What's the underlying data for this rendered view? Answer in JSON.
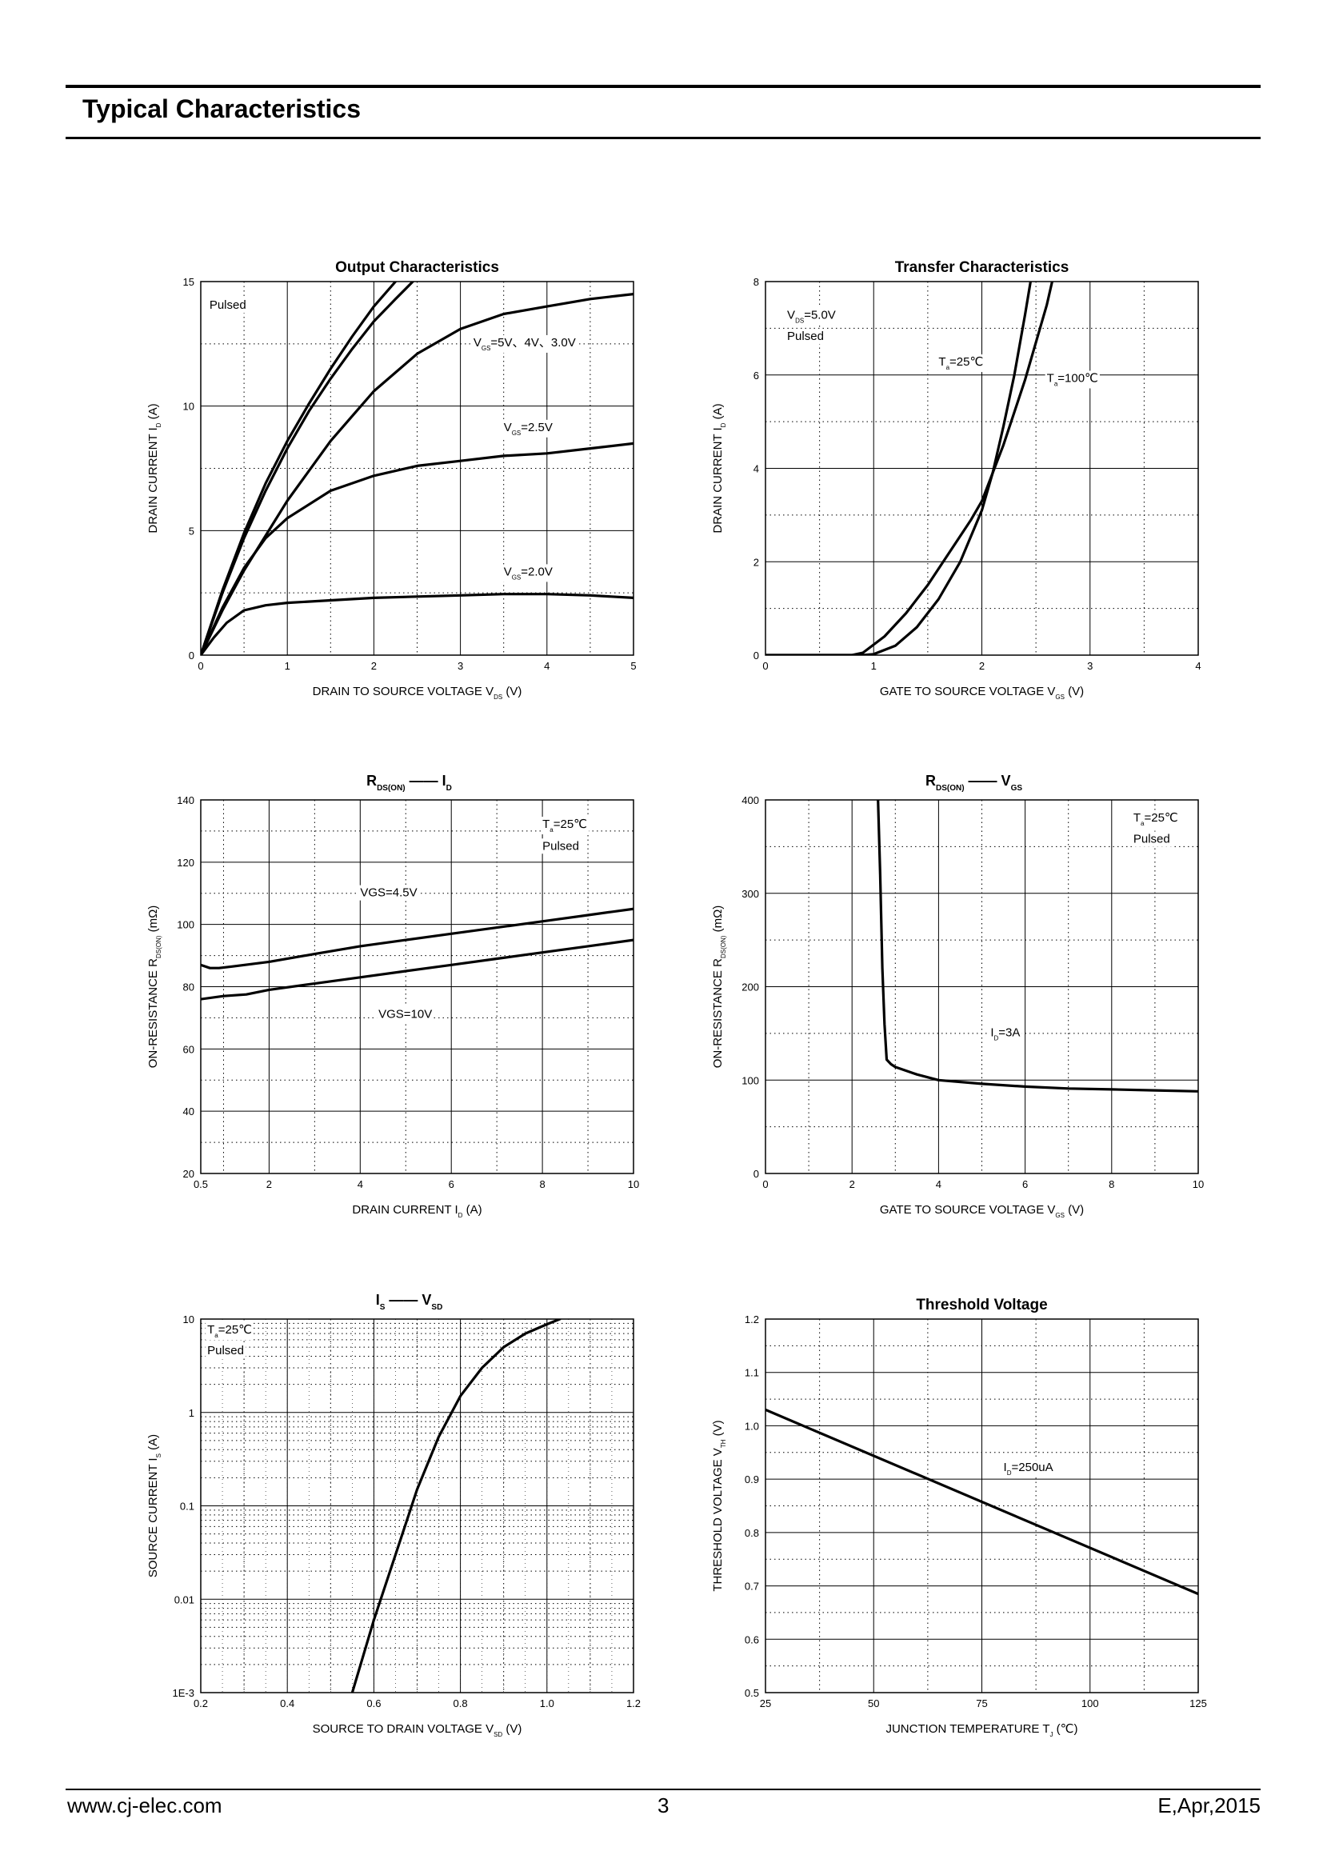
{
  "header": {
    "title": "Typical Characteristics"
  },
  "footer": {
    "website": "www.cj-elec.com",
    "page": "3",
    "revision": "E,Apr,2015"
  },
  "chart_data": [
    {
      "id": "output",
      "type": "line",
      "title": "Output Characteristics",
      "xlabel": "DRAIN TO SOURCE VOLTAGE",
      "xsym": "V",
      "xsub": "DS",
      "xunit": "(V)",
      "ylabel": "DRAIN CURRENT",
      "ysym": "I",
      "ysub": "D",
      "yunit": "(A)",
      "xlim": [
        0,
        5
      ],
      "ylim": [
        0,
        15
      ],
      "xticks": [
        0,
        1,
        2,
        3,
        4,
        5
      ],
      "xtick_labels": [
        "0",
        "1",
        "2",
        "3",
        "4",
        "5"
      ],
      "yticks": [
        0,
        5,
        10,
        15
      ],
      "ytick_labels": [
        "0",
        "5",
        "10",
        "15"
      ],
      "xminor": [
        0.5,
        1.5,
        2.5,
        3.5,
        4.5
      ],
      "yminor": [
        2.5,
        7.5,
        12.5
      ],
      "series": [
        {
          "name": "VGS=5V",
          "x": [
            0,
            0.25,
            0.5,
            0.75,
            1.0,
            1.25,
            1.5,
            1.75,
            2.0,
            2.25
          ],
          "y": [
            0,
            2.6,
            4.9,
            6.9,
            8.6,
            10.1,
            11.5,
            12.8,
            14.0,
            15.0
          ]
        },
        {
          "name": "VGS=4V",
          "x": [
            0,
            0.25,
            0.5,
            0.75,
            1.0,
            1.25,
            1.5,
            1.75,
            2.0,
            2.25,
            2.45
          ],
          "y": [
            0,
            2.5,
            4.7,
            6.6,
            8.3,
            9.8,
            11.1,
            12.3,
            13.4,
            14.3,
            15.0
          ]
        },
        {
          "name": "VGS=3.0V",
          "x": [
            0,
            0.25,
            0.5,
            0.75,
            1.0,
            1.25,
            1.5,
            1.75,
            2.0,
            2.5,
            3.0,
            3.5,
            4.0,
            4.5,
            5.0
          ],
          "y": [
            0,
            1.8,
            3.4,
            4.8,
            6.2,
            7.4,
            8.6,
            9.6,
            10.6,
            12.1,
            13.1,
            13.7,
            14.0,
            14.3,
            14.5
          ]
        },
        {
          "name": "VGS=2.5V",
          "x": [
            0,
            0.25,
            0.5,
            0.75,
            1.0,
            1.5,
            2.0,
            2.5,
            3.0,
            3.5,
            4.0,
            4.5,
            5.0
          ],
          "y": [
            0,
            1.9,
            3.5,
            4.7,
            5.5,
            6.6,
            7.2,
            7.6,
            7.8,
            8.0,
            8.1,
            8.3,
            8.5
          ]
        },
        {
          "name": "VGS=2.0V",
          "x": [
            0,
            0.15,
            0.3,
            0.5,
            0.75,
            1.0,
            1.5,
            2.0,
            2.5,
            3.0,
            3.5,
            4.0,
            4.5,
            5.0
          ],
          "y": [
            0,
            0.7,
            1.3,
            1.8,
            2.0,
            2.1,
            2.2,
            2.3,
            2.35,
            2.4,
            2.45,
            2.45,
            2.4,
            2.3
          ]
        }
      ],
      "annotations": [
        {
          "name": "pulsed",
          "text": "Pulsed",
          "x": 0.1,
          "y": 13.9
        },
        {
          "name": "vgs-5-4-3",
          "text": "=5V、4V、3.0V",
          "sym": "V",
          "sub": "GS",
          "x": 3.15,
          "y": 12.4
        },
        {
          "name": "vgs-2-5",
          "text": "=2.5V",
          "sym": "V",
          "sub": "GS",
          "x": 3.5,
          "y": 9.0
        },
        {
          "name": "vgs-2-0",
          "text": "=2.0V",
          "sym": "V",
          "sub": "GS",
          "x": 3.5,
          "y": 3.2
        }
      ]
    },
    {
      "id": "transfer",
      "type": "line",
      "title": "Transfer Characteristics",
      "xlabel": "GATE TO SOURCE VOLTAGE",
      "xsym": "V",
      "xsub": "GS",
      "xunit": "(V)",
      "ylabel": "DRAIN CURRENT",
      "ysym": "I",
      "ysub": "D",
      "yunit": "(A)",
      "xlim": [
        0,
        4
      ],
      "ylim": [
        0,
        8
      ],
      "xticks": [
        0,
        1,
        2,
        3,
        4
      ],
      "xtick_labels": [
        "0",
        "1",
        "2",
        "3",
        "4"
      ],
      "yticks": [
        0,
        2,
        4,
        6,
        8
      ],
      "ytick_labels": [
        "0",
        "2",
        "4",
        "6",
        "8"
      ],
      "xminor": [
        0.5,
        1.5,
        2.5,
        3.5
      ],
      "yminor": [
        1,
        3,
        5,
        7
      ],
      "series": [
        {
          "name": "Ta=25℃",
          "x": [
            0,
            0.9,
            1.0,
            1.2,
            1.4,
            1.6,
            1.8,
            2.0,
            2.1,
            2.2,
            2.3,
            2.4,
            2.45
          ],
          "y": [
            0,
            0,
            0.02,
            0.2,
            0.6,
            1.2,
            2.0,
            3.1,
            3.9,
            4.9,
            6.0,
            7.3,
            8.0
          ]
        },
        {
          "name": "Ta=100℃",
          "x": [
            0,
            0.8,
            0.9,
            1.1,
            1.3,
            1.5,
            1.7,
            1.9,
            2.0,
            2.2,
            2.4,
            2.6,
            2.65
          ],
          "y": [
            0,
            0,
            0.05,
            0.4,
            0.9,
            1.5,
            2.2,
            2.9,
            3.3,
            4.5,
            5.9,
            7.5,
            8.0
          ]
        }
      ],
      "annotations": [
        {
          "name": "vds",
          "text": "=5.0V",
          "sym": "V",
          "sub": "DS",
          "x": 0.2,
          "y": 7.2
        },
        {
          "name": "pulsed",
          "text": "Pulsed",
          "x": 0.2,
          "y": 6.75
        },
        {
          "name": "ta25",
          "text": "=25℃",
          "sym": "T",
          "sub": "a",
          "x": 1.6,
          "y": 6.2
        },
        {
          "name": "ta100",
          "text": "=100℃",
          "sym": "T",
          "sub": "a",
          "x": 2.6,
          "y": 5.85
        }
      ]
    },
    {
      "id": "rds-id",
      "type": "line",
      "title": "RDS(ON) —— ID",
      "title_parts": {
        "sym": "R",
        "sub": "DS(ON)",
        "dash": "——",
        "sym2": "I",
        "sub2": "D"
      },
      "xlabel": "DRAIN CURRENT",
      "xsym": "I",
      "xsub": "D",
      "xunit": "(A)",
      "ylabel": "ON-RESISTANCE",
      "ysym": "R",
      "ysub": "DS(ON)",
      "yunit": "(mΩ)",
      "xlim": [
        0.5,
        10
      ],
      "ylim": [
        20,
        140
      ],
      "xticks": [
        0.5,
        2,
        4,
        6,
        8,
        10
      ],
      "xtick_labels": [
        "0.5",
        "2",
        "4",
        "6",
        "8",
        "10"
      ],
      "yticks": [
        20,
        40,
        60,
        80,
        100,
        120,
        140
      ],
      "ytick_labels": [
        "20",
        "40",
        "60",
        "80",
        "100",
        "120",
        "140"
      ],
      "xminor": [
        1,
        3,
        5,
        7,
        9
      ],
      "yminor": [
        30,
        50,
        70,
        90,
        110,
        130
      ],
      "series": [
        {
          "name": "VGS=4.5V",
          "x": [
            0.5,
            0.7,
            0.9,
            1.2,
            2,
            3,
            4,
            5,
            6,
            7,
            8,
            9,
            10
          ],
          "y": [
            87,
            86,
            86,
            86.5,
            88,
            90.5,
            93,
            95,
            97,
            99,
            101,
            103,
            105
          ]
        },
        {
          "name": "VGS=10V",
          "x": [
            0.5,
            1,
            1.5,
            2,
            3,
            4,
            5,
            6,
            7,
            8,
            9,
            10
          ],
          "y": [
            76,
            77,
            77.5,
            79,
            81,
            83,
            85,
            87,
            89,
            91,
            93,
            95
          ]
        }
      ],
      "annotations": [
        {
          "name": "ta25",
          "text": "=25℃",
          "sym": "T",
          "sub": "a",
          "x": 8.0,
          "y": 131
        },
        {
          "name": "pulsed",
          "text": "Pulsed",
          "x": 8.0,
          "y": 124
        },
        {
          "name": "vgs-4-5",
          "text": "VGS=4.5V",
          "x": 4.0,
          "y": 109
        },
        {
          "name": "vgs-10",
          "text": "VGS=10V",
          "x": 4.4,
          "y": 70
        }
      ]
    },
    {
      "id": "rds-vgs",
      "type": "line",
      "title": "RDS(ON) —— VGS",
      "title_parts": {
        "sym": "R",
        "sub": "DS(ON)",
        "dash": "——",
        "sym2": "V",
        "sub2": "GS"
      },
      "xlabel": "GATE TO SOURCE VOLTAGE",
      "xsym": "V",
      "xsub": "GS",
      "xunit": "(V)",
      "ylabel": "ON-RESISTANCE",
      "ysym": "R",
      "ysub": "DS(ON)",
      "yunit": "(mΩ)",
      "xlim": [
        0,
        10
      ],
      "ylim": [
        0,
        400
      ],
      "xticks": [
        0,
        2,
        4,
        6,
        8,
        10
      ],
      "xtick_labels": [
        "0",
        "2",
        "4",
        "6",
        "8",
        "10"
      ],
      "yticks": [
        0,
        100,
        200,
        300,
        400
      ],
      "ytick_labels": [
        "0",
        "100",
        "200",
        "300",
        "400"
      ],
      "xminor": [
        1,
        3,
        5,
        7,
        9
      ],
      "yminor": [
        50,
        150,
        250,
        350
      ],
      "series": [
        {
          "name": "ID=3A",
          "x": [
            2.6,
            2.65,
            2.7,
            2.75,
            2.8,
            2.9,
            3.0,
            3.5,
            4.0,
            5,
            6,
            7,
            8,
            9,
            10
          ],
          "y": [
            400,
            320,
            220,
            160,
            122,
            117,
            114,
            106,
            100,
            96,
            93,
            91,
            90,
            89,
            88
          ]
        }
      ],
      "annotations": [
        {
          "name": "ta25",
          "text": "=25℃",
          "sym": "T",
          "sub": "a",
          "x": 8.5,
          "y": 377
        },
        {
          "name": "pulsed",
          "text": "Pulsed",
          "x": 8.5,
          "y": 354
        },
        {
          "name": "id3a",
          "text": "=3A",
          "sym": "I",
          "sub": "D",
          "x": 5.2,
          "y": 147
        }
      ]
    },
    {
      "id": "is-vsd",
      "type": "line",
      "yscale": "log",
      "title": "IS —— VSD",
      "title_parts": {
        "sym": "I",
        "sub": "S",
        "dash": "——",
        "sym2": "V",
        "sub2": "SD"
      },
      "xlabel": "SOURCE TO DRAIN VOLTAGE",
      "xsym": "V",
      "xsub": "SD",
      "xunit": "(V)",
      "ylabel": "SOURCE CURRENT",
      "ysym": "I",
      "ysub": "S",
      "yunit": "(A)",
      "xlim": [
        0.2,
        1.2
      ],
      "ylim": [
        0.001,
        10
      ],
      "xticks": [
        0.2,
        0.4,
        0.6,
        0.8,
        1.0,
        1.2
      ],
      "xtick_labels": [
        "0.2",
        "0.4",
        "0.6",
        "0.8",
        "1.0",
        "1.2"
      ],
      "yticks": [
        0.001,
        0.01,
        0.1,
        1,
        10
      ],
      "ytick_labels": [
        "1E-3",
        "0.01",
        "0.1",
        "1",
        "10"
      ],
      "xminor": [
        0.3,
        0.5,
        0.7,
        0.9,
        1.1
      ],
      "series": [
        {
          "name": "IS",
          "x": [
            0.55,
            0.6,
            0.65,
            0.7,
            0.75,
            0.8,
            0.85,
            0.9,
            0.95,
            1.0,
            1.03
          ],
          "y": [
            0.001,
            0.006,
            0.03,
            0.15,
            0.55,
            1.5,
            3.0,
            5.0,
            7.0,
            8.8,
            10
          ]
        }
      ],
      "annotations": [
        {
          "name": "ta25",
          "text": "=25℃",
          "sym": "T",
          "sub": "a",
          "x": 0.215,
          "y": 7.0
        },
        {
          "name": "pulsed",
          "text": "Pulsed",
          "x": 0.215,
          "y": 4.2
        }
      ]
    },
    {
      "id": "threshold",
      "type": "line",
      "title": "Threshold Voltage",
      "xlabel": "JUNCTION TEMPERATURE",
      "xsym": "T",
      "xsub": "J",
      "xunit": "(℃)",
      "ylabel": "THRESHOLD VOLTAGE",
      "ysym": "V",
      "ysub": "TH",
      "yunit": "(V)",
      "xlim": [
        25,
        125
      ],
      "ylim": [
        0.5,
        1.2
      ],
      "xticks": [
        25,
        50,
        75,
        100,
        125
      ],
      "xtick_labels": [
        "25",
        "50",
        "75",
        "100",
        "125"
      ],
      "yticks": [
        0.5,
        0.6,
        0.7,
        0.8,
        0.9,
        1.0,
        1.1,
        1.2
      ],
      "ytick_labels": [
        "0.5",
        "0.6",
        "0.7",
        "0.8",
        "0.9",
        "1.0",
        "1.1",
        "1.2"
      ],
      "xminor": [
        37.5,
        62.5,
        87.5,
        112.5
      ],
      "yminor": [
        0.55,
        0.65,
        0.75,
        0.85,
        0.95,
        1.05,
        1.15
      ],
      "series": [
        {
          "name": "ID=250uA",
          "x": [
            25,
            125
          ],
          "y": [
            1.03,
            0.685
          ]
        }
      ],
      "annotations": [
        {
          "name": "id250",
          "text": "=250uA",
          "sym": "I",
          "sub": "D",
          "x": 80,
          "y": 0.915
        }
      ]
    }
  ]
}
